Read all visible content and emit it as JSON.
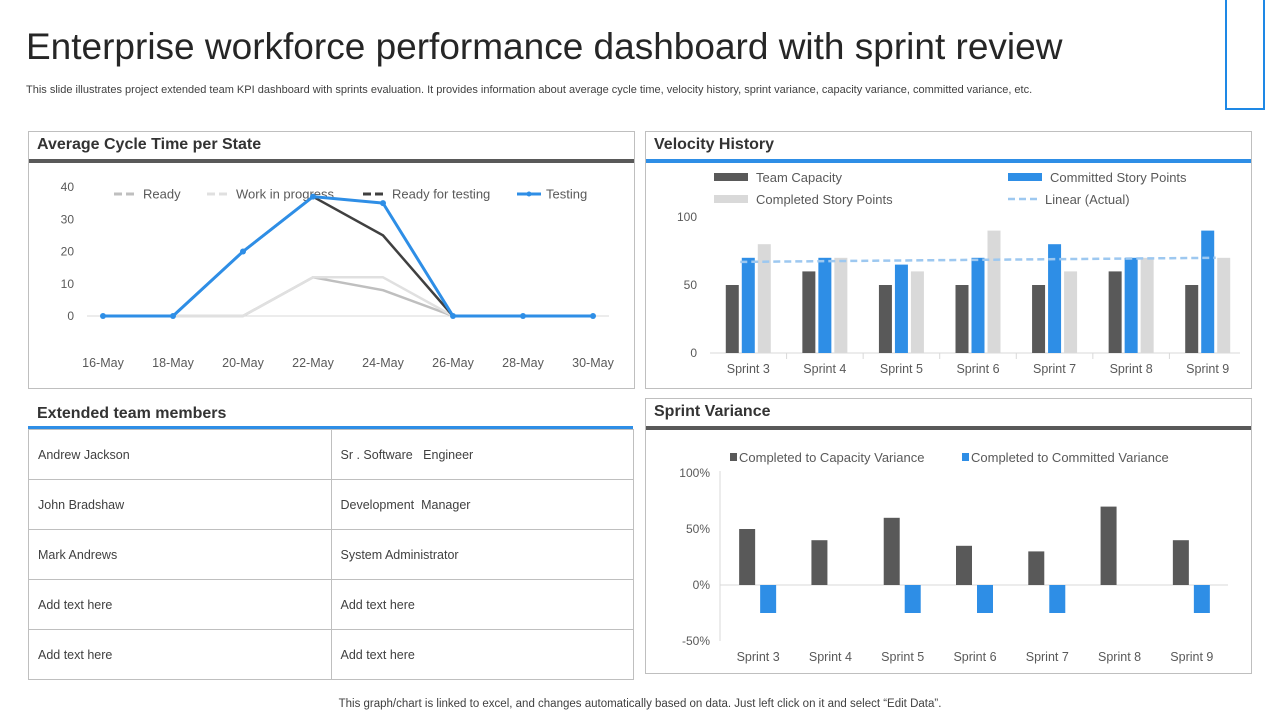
{
  "header": {
    "title": "Enterprise workforce performance dashboard with sprint review",
    "subtitle": "This slide illustrates project extended team KPI dashboard with sprints evaluation. It provides information about average cycle time, velocity history, sprint variance, capacity variance, committed variance, etc."
  },
  "footer": "This graph/chart is linked to excel,  and changes automatically based on data. Just left click on it and select “Edit Data”.",
  "team": {
    "title": "Extended team members",
    "members": [
      {
        "name": "Andrew Jackson",
        "role": "Sr . Software   Engineer"
      },
      {
        "name": "John Bradshaw",
        "role": "Development  Manager"
      },
      {
        "name": "Mark Andrews",
        "role": "System Administrator"
      },
      {
        "name": "Add text here",
        "role": "Add text here"
      },
      {
        "name": "Add text here",
        "role": "Add text here"
      }
    ]
  },
  "colors": {
    "blue": "#2e8ee6",
    "dark_gray": "#595959",
    "light_gray": "#bfbfbf",
    "very_light_gray": "#d9d9d9",
    "trend": "#9dc8f0"
  },
  "chart_data": [
    {
      "id": "cycle",
      "type": "line",
      "title": "Average Cycle Time per State",
      "categories": [
        "16-May",
        "18-May",
        "20-May",
        "22-May",
        "24-May",
        "26-May",
        "28-May",
        "30-May"
      ],
      "ylim": [
        0,
        40
      ],
      "yticks": [
        "0",
        "10",
        "20",
        "30",
        "40"
      ],
      "legend_position": "top",
      "series": [
        {
          "name": "Ready",
          "color": "#bfbfbf",
          "values": [
            0,
            0,
            0,
            12,
            8,
            0,
            null,
            null
          ]
        },
        {
          "name": "Work in progress",
          "color": "#e0e0e0",
          "values": [
            0,
            0,
            0,
            12,
            12,
            0,
            null,
            null
          ]
        },
        {
          "name": "Ready for testing",
          "color": "#404040",
          "values": [
            0,
            0,
            20,
            37,
            25,
            0,
            null,
            null
          ]
        },
        {
          "name": "Testing",
          "color": "#2e8ee6",
          "values": [
            0,
            0,
            20,
            37,
            35,
            0,
            0,
            0
          ]
        }
      ]
    },
    {
      "id": "velocity",
      "type": "bar",
      "title": "Velocity History",
      "categories": [
        "Sprint 3",
        "Sprint 4",
        "Sprint 5",
        "Sprint 6",
        "Sprint 7",
        "Sprint 8",
        "Sprint 9"
      ],
      "ylim": [
        0,
        100
      ],
      "yticks": [
        "0",
        "50",
        "100"
      ],
      "legend_position": "top",
      "series": [
        {
          "name": "Team Capacity",
          "color": "#595959",
          "values": [
            50,
            60,
            50,
            50,
            50,
            60,
            50
          ]
        },
        {
          "name": "Committed Story Points",
          "color": "#2e8ee6",
          "values": [
            70,
            70,
            65,
            70,
            80,
            70,
            90
          ]
        },
        {
          "name": "Completed Story Points",
          "color": "#d9d9d9",
          "values": [
            80,
            70,
            60,
            90,
            60,
            70,
            70
          ]
        }
      ],
      "trend": {
        "name": "Linear (Actual)",
        "color": "#9dc8f0",
        "values": [
          67,
          70
        ]
      }
    },
    {
      "id": "variance",
      "type": "bar",
      "title": "Sprint Variance",
      "categories": [
        "Sprint 3",
        "Sprint 4",
        "Sprint 5",
        "Sprint 6",
        "Sprint 7",
        "Sprint 8",
        "Sprint 9"
      ],
      "ylim": [
        -50,
        100
      ],
      "yticks": [
        "-50%",
        "0%",
        "50%",
        "100%"
      ],
      "legend_position": "top",
      "series": [
        {
          "name": "Completed to Capacity Variance",
          "color": "#595959",
          "values": [
            50,
            40,
            60,
            35,
            30,
            70,
            40
          ]
        },
        {
          "name": "Completed to Committed Variance",
          "color": "#2e8ee6",
          "values": [
            -25,
            0,
            -25,
            -25,
            -25,
            0,
            -25
          ]
        }
      ]
    }
  ]
}
